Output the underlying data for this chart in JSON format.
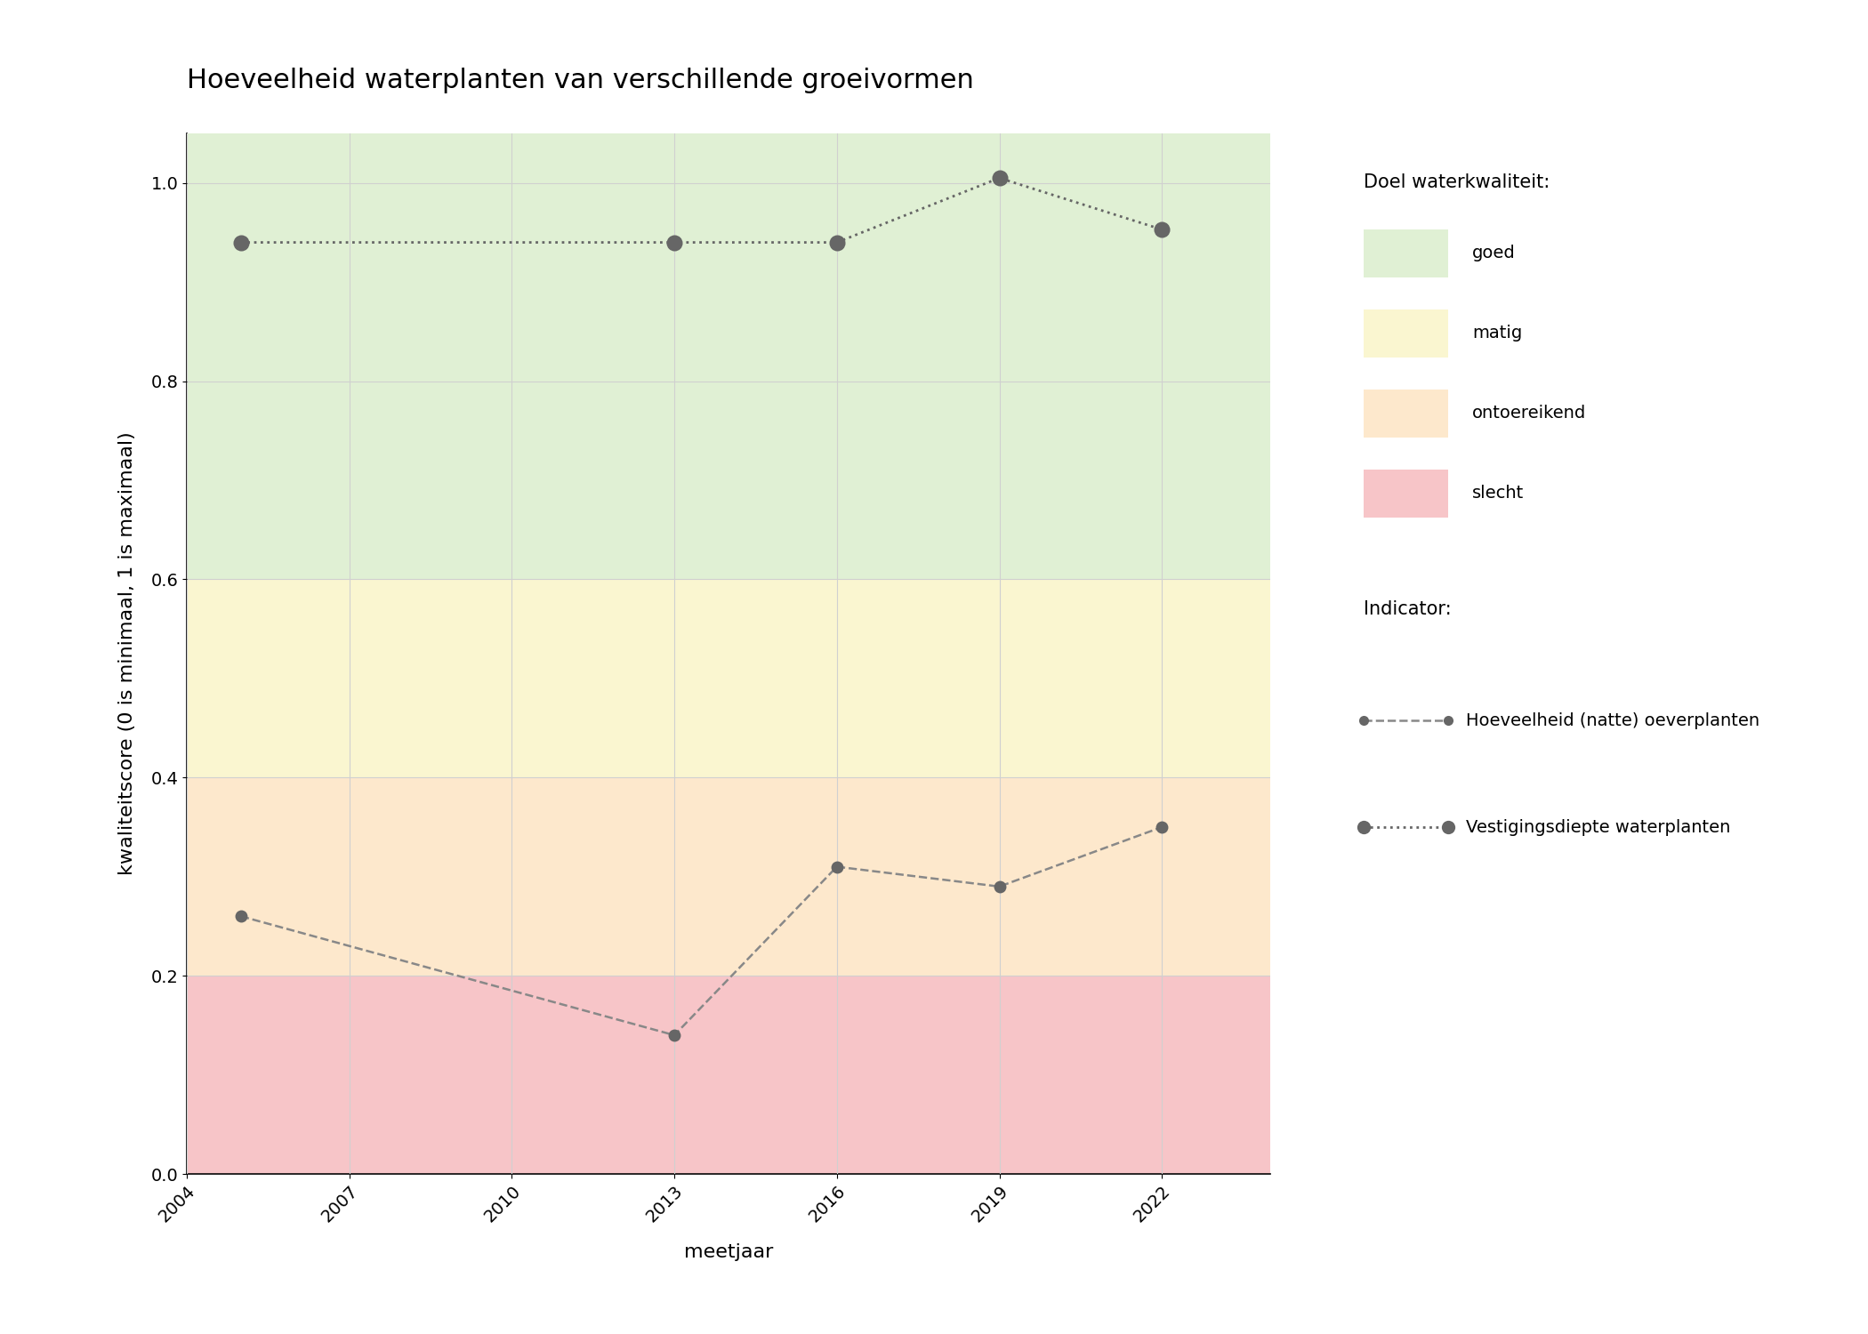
{
  "title": "Hoeveelheid waterplanten van verschillende groeivormen",
  "xlabel": "meetjaar",
  "ylabel": "kwaliteitscore (0 is minimaal, 1 is maximaal)",
  "xlim": [
    2004,
    2024
  ],
  "ylim": [
    0.0,
    1.05
  ],
  "xticks": [
    2004,
    2007,
    2010,
    2013,
    2016,
    2019,
    2022
  ],
  "yticks": [
    0.0,
    0.2,
    0.4,
    0.6,
    0.8,
    1.0
  ],
  "bg_bands": [
    {
      "ymin": 0.0,
      "ymax": 0.2,
      "color": "#f7c5c8",
      "label": "slecht"
    },
    {
      "ymin": 0.2,
      "ymax": 0.4,
      "color": "#fde8cc",
      "label": "ontoereikend"
    },
    {
      "ymin": 0.4,
      "ymax": 0.6,
      "color": "#faf6d0",
      "label": "matig"
    },
    {
      "ymin": 0.6,
      "ymax": 1.1,
      "color": "#e0f0d4",
      "label": "goed"
    }
  ],
  "series": [
    {
      "name": "Hoeveelheid (natte) oeverplanten",
      "years": [
        2005,
        2013,
        2016,
        2019,
        2022
      ],
      "values": [
        0.26,
        0.14,
        0.31,
        0.29,
        0.35
      ],
      "linestyle": "dashed",
      "color": "#888888",
      "marker": "o",
      "markersize": 10,
      "linewidth": 1.8
    },
    {
      "name": "Vestigingsdiepte waterplanten",
      "years": [
        2005,
        2013,
        2016,
        2019,
        2022
      ],
      "values": [
        0.94,
        0.94,
        0.94,
        1.005,
        0.953
      ],
      "linestyle": "dotted",
      "color": "#666666",
      "marker": "o",
      "markersize": 13,
      "linewidth": 2.0
    }
  ],
  "legend_title_doel": "Doel waterkwaliteit:",
  "legend_title_indicator": "Indicator:",
  "background_color": "#ffffff",
  "grid_color": "#d0d0d0",
  "title_fontsize": 22,
  "label_fontsize": 16,
  "tick_fontsize": 14,
  "legend_fontsize": 14,
  "marker_color": "#666666"
}
